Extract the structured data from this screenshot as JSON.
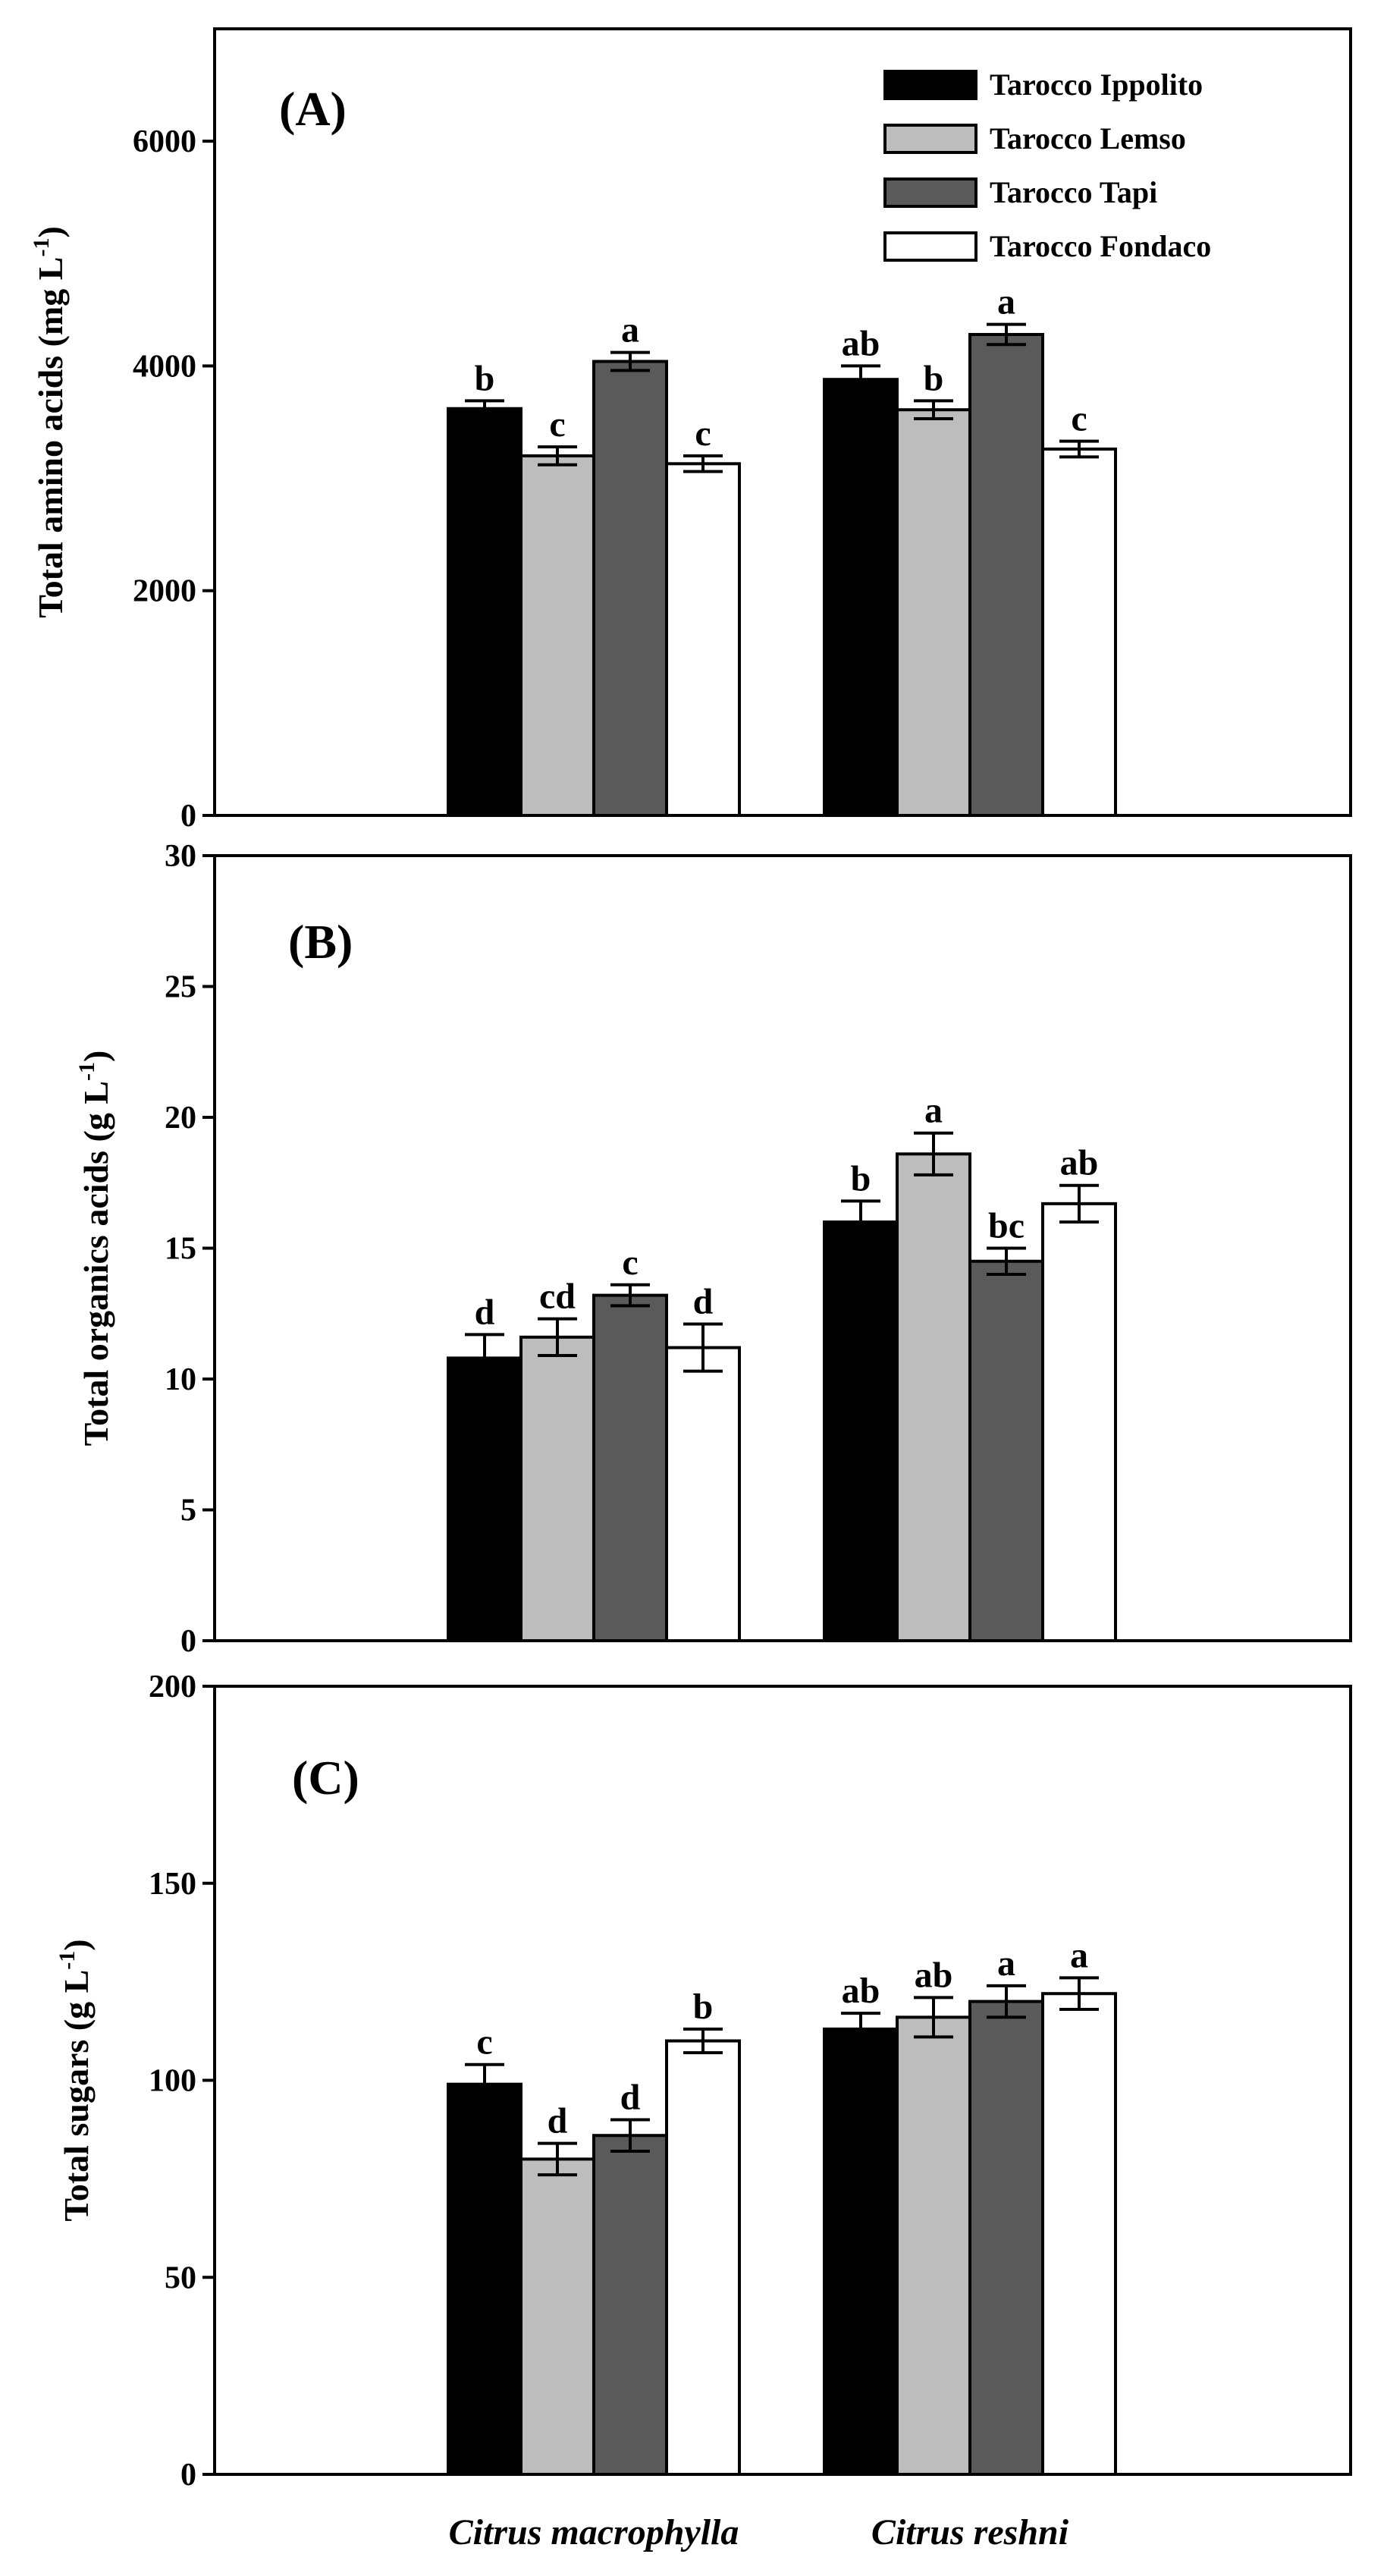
{
  "chart_data": [
    {
      "type": "bar",
      "panel": "(A)",
      "ylabel": "Total amino acids  (mg L",
      "ylabel_sup": "-1",
      "ylabel_tail": ")",
      "ylim": [
        0,
        7000
      ],
      "yticks": [
        0,
        2000,
        4000,
        6000
      ],
      "categories": [
        "Citrus macrophylla",
        "Citrus reshni"
      ],
      "series": [
        {
          "name": "Tarocco Ippolito",
          "values": [
            3620,
            3880
          ],
          "errors": [
            70,
            120
          ],
          "letters": [
            "b",
            "ab"
          ]
        },
        {
          "name": "Tarocco Lemso",
          "values": [
            3200,
            3610
          ],
          "errors": [
            80,
            80
          ],
          "letters": [
            "c",
            "b"
          ]
        },
        {
          "name": "Tarocco Tapi",
          "values": [
            4040,
            4280
          ],
          "errors": [
            80,
            90
          ],
          "letters": [
            "a",
            "a"
          ]
        },
        {
          "name": "Tarocco Fondaco",
          "values": [
            3130,
            3260
          ],
          "errors": [
            70,
            70
          ],
          "letters": [
            "c",
            "c"
          ]
        }
      ],
      "legend": [
        "Tarocco Ippolito",
        "Tarocco Lemso",
        "Tarocco Tapi",
        "Tarocco Fondaco"
      ]
    },
    {
      "type": "bar",
      "panel": "(B)",
      "ylabel": "Total organics acids  (g L",
      "ylabel_sup": "-1",
      "ylabel_tail": ")",
      "ylim": [
        0,
        30
      ],
      "yticks": [
        0,
        5,
        10,
        15,
        20,
        25,
        30
      ],
      "categories": [
        "Citrus macrophylla",
        "Citrus reshni"
      ],
      "series": [
        {
          "name": "Tarocco Ippolito",
          "values": [
            10.8,
            16.0
          ],
          "errors": [
            0.9,
            0.8
          ],
          "letters": [
            "d",
            "b"
          ]
        },
        {
          "name": "Tarocco Lemso",
          "values": [
            11.6,
            18.6
          ],
          "errors": [
            0.7,
            0.8
          ],
          "letters": [
            "cd",
            "a"
          ]
        },
        {
          "name": "Tarocco Tapi",
          "values": [
            13.2,
            14.5
          ],
          "errors": [
            0.4,
            0.5
          ],
          "letters": [
            "c",
            "bc"
          ]
        },
        {
          "name": "Tarocco Fondaco",
          "values": [
            11.2,
            16.7
          ],
          "errors": [
            0.9,
            0.7
          ],
          "letters": [
            "d",
            "ab"
          ]
        }
      ]
    },
    {
      "type": "bar",
      "panel": "(C)",
      "ylabel": "Total sugars  (g L",
      "ylabel_sup": "-1",
      "ylabel_tail": ")",
      "ylim": [
        0,
        200
      ],
      "yticks": [
        0,
        50,
        100,
        150,
        200
      ],
      "xlabel_categories": [
        "Citrus macrophylla",
        "Citrus reshni"
      ],
      "categories": [
        "Citrus macrophylla",
        "Citrus reshni"
      ],
      "series": [
        {
          "name": "Tarocco Ippolito",
          "values": [
            99,
            113
          ],
          "errors": [
            5,
            4
          ],
          "letters": [
            "c",
            "ab"
          ]
        },
        {
          "name": "Tarocco Lemso",
          "values": [
            80,
            116
          ],
          "errors": [
            4,
            5
          ],
          "letters": [
            "d",
            "ab"
          ]
        },
        {
          "name": "Tarocco Tapi",
          "values": [
            86,
            120
          ],
          "errors": [
            4,
            4
          ],
          "letters": [
            "d",
            "a"
          ]
        },
        {
          "name": "Tarocco Fondaco",
          "values": [
            110,
            122
          ],
          "errors": [
            3,
            4
          ],
          "letters": [
            "b",
            "a"
          ]
        }
      ]
    }
  ],
  "colors": {
    "Tarocco Ippolito": "#000000",
    "Tarocco Lemso": "#bdbdbd",
    "Tarocco Tapi": "#5a5a5a",
    "Tarocco Fondaco": "#ffffff",
    "axis": "#000000"
  }
}
